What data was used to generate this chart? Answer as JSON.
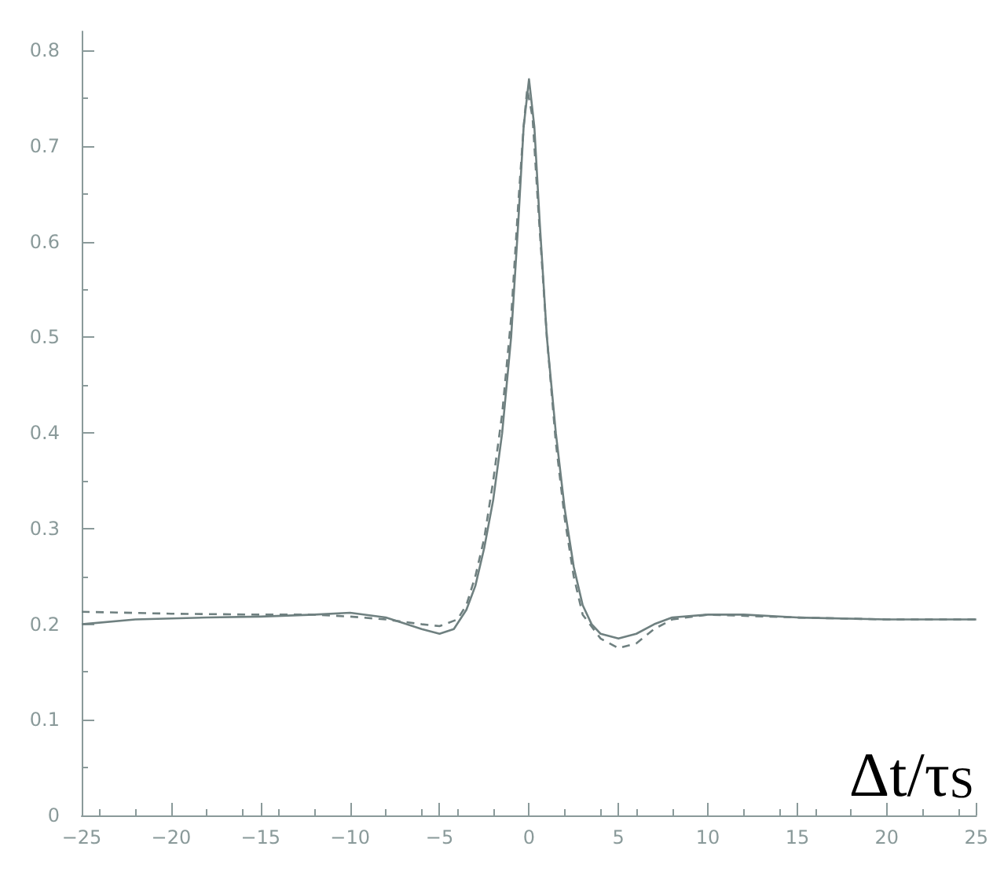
{
  "chart_data": {
    "type": "line",
    "xlabel": "Δt/τ$_{S}$",
    "xlim": [
      -25,
      25
    ],
    "xticks": [
      -25,
      -20,
      -15,
      -10,
      -5,
      0,
      5,
      10,
      15,
      20,
      25
    ],
    "ylim": [
      0,
      0.82
    ],
    "yticks": [
      0,
      0.1,
      0.2,
      0.3,
      0.4,
      0.5,
      0.6,
      0.7,
      0.8
    ],
    "grid": false,
    "marker": "none",
    "series": [
      {
        "color": "#6f8080",
        "line_style": "solid",
        "x": [
          -25,
          -22,
          -18,
          -15,
          -12,
          -10,
          -8,
          -6,
          -5,
          -4.2,
          -3.5,
          -3,
          -2.5,
          -2,
          -1.5,
          -1,
          -0.6,
          -0.3,
          0,
          0.3,
          0.6,
          1,
          1.5,
          2,
          2.5,
          3,
          3.5,
          4,
          5,
          6,
          7,
          8,
          10,
          12,
          15,
          20,
          25
        ],
        "values": [
          0.2,
          0.205,
          0.207,
          0.208,
          0.21,
          0.212,
          0.207,
          0.195,
          0.19,
          0.195,
          0.215,
          0.24,
          0.28,
          0.33,
          0.4,
          0.5,
          0.62,
          0.72,
          0.77,
          0.72,
          0.62,
          0.5,
          0.4,
          0.32,
          0.26,
          0.22,
          0.2,
          0.19,
          0.185,
          0.19,
          0.2,
          0.207,
          0.21,
          0.21,
          0.207,
          0.205,
          0.205
        ]
      },
      {
        "color": "#6f8080",
        "line_style": "dashed",
        "x": [
          -25,
          -20,
          -15,
          -12,
          -10,
          -8,
          -6,
          -5,
          -4,
          -3.5,
          -3,
          -2.5,
          -2,
          -1.5,
          -1,
          -0.6,
          -0.3,
          -0.1,
          0.2,
          0.5,
          1,
          1.5,
          2,
          2.5,
          3,
          4,
          5,
          6,
          7,
          8,
          10,
          15,
          20,
          25
        ],
        "values": [
          0.213,
          0.211,
          0.21,
          0.21,
          0.208,
          0.205,
          0.2,
          0.198,
          0.205,
          0.22,
          0.25,
          0.29,
          0.35,
          0.42,
          0.52,
          0.64,
          0.72,
          0.76,
          0.73,
          0.64,
          0.5,
          0.39,
          0.31,
          0.25,
          0.21,
          0.185,
          0.175,
          0.18,
          0.195,
          0.205,
          0.21,
          0.207,
          0.205,
          0.205
        ]
      }
    ]
  }
}
